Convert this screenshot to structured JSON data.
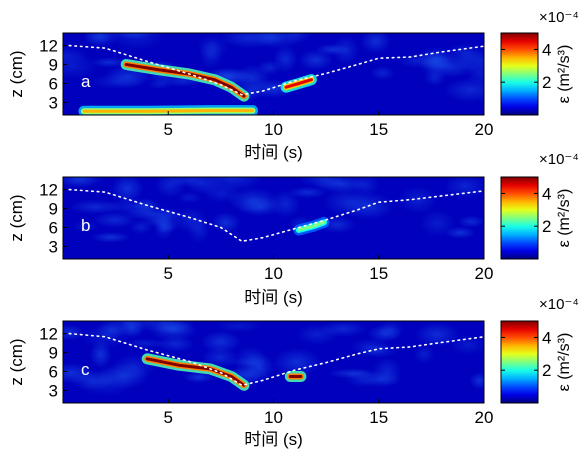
{
  "chart_data": [
    {
      "type": "heatmap",
      "panel_label": "a",
      "xlabel": "时间 (s)",
      "ylabel": "z (cm)",
      "xlim": [
        0,
        20
      ],
      "ylim": [
        1,
        14
      ],
      "x_ticks": [
        5,
        10,
        15,
        20
      ],
      "y_ticks": [
        3,
        6,
        9,
        12
      ],
      "colorbar": {
        "label": "ε (m²/s³)",
        "exponent_label": "×10⁻⁴",
        "ticks": [
          2,
          4
        ],
        "range": [
          0,
          5
        ]
      },
      "surface_dotted": [
        [
          0.3,
          12.0
        ],
        [
          2,
          11.6
        ],
        [
          4,
          9.5
        ],
        [
          6,
          7.5
        ],
        [
          7.5,
          5.8
        ],
        [
          8.5,
          4.2
        ],
        [
          9.5,
          4.8
        ],
        [
          11,
          6.4
        ],
        [
          12.5,
          7.6
        ],
        [
          14,
          9.0
        ],
        [
          15,
          10.0
        ],
        [
          16.5,
          10.2
        ],
        [
          18,
          11.0
        ],
        [
          20,
          11.9
        ]
      ],
      "high_dissipation_bands": [
        {
          "points": [
            [
              3,
              9.0
            ],
            [
              4.5,
              8.2
            ],
            [
              6,
              7.5
            ],
            [
              7.2,
              6.6
            ],
            [
              8,
              5.4
            ],
            [
              8.6,
              4.0
            ]
          ],
          "peak": 5
        },
        {
          "points": [
            [
              10.6,
              5.4
            ],
            [
              11.2,
              6.0
            ],
            [
              11.8,
              6.6
            ]
          ],
          "peak": 4.5
        },
        {
          "points": [
            [
              1,
              1.6
            ],
            [
              4,
              1.6
            ],
            [
              7,
              1.7
            ],
            [
              9,
              1.7
            ]
          ],
          "peak": 3.5
        }
      ]
    },
    {
      "type": "heatmap",
      "panel_label": "b",
      "xlabel": "时间 (s)",
      "ylabel": "z (cm)",
      "xlim": [
        0,
        20
      ],
      "ylim": [
        1,
        14
      ],
      "x_ticks": [
        5,
        10,
        15,
        20
      ],
      "y_ticks": [
        3,
        6,
        9,
        12
      ],
      "colorbar": {
        "label": "ε (m²/s³)",
        "exponent_label": "×10⁻⁴",
        "ticks": [
          2,
          4
        ],
        "range": [
          0,
          5
        ]
      },
      "surface_dotted": [
        [
          0.3,
          12.0
        ],
        [
          2,
          11.6
        ],
        [
          4,
          9.5
        ],
        [
          6,
          7.6
        ],
        [
          7.5,
          6.0
        ],
        [
          8.5,
          3.8
        ],
        [
          9.5,
          4.4
        ],
        [
          11,
          5.8
        ],
        [
          12.5,
          7.2
        ],
        [
          14,
          8.8
        ],
        [
          15,
          10.0
        ],
        [
          16.5,
          10.4
        ],
        [
          18,
          11.0
        ],
        [
          20,
          11.8
        ]
      ],
      "high_dissipation_bands": [
        {
          "points": [
            [
              11.2,
              5.6
            ],
            [
              11.9,
              6.2
            ],
            [
              12.4,
              6.8
            ]
          ],
          "peak": 2.5
        }
      ]
    },
    {
      "type": "heatmap",
      "panel_label": "c",
      "xlabel": "时间 (s)",
      "ylabel": "z (cm)",
      "xlim": [
        0,
        20
      ],
      "ylim": [
        1,
        14
      ],
      "x_ticks": [
        5,
        10,
        15,
        20
      ],
      "y_ticks": [
        3,
        6,
        9,
        12
      ],
      "colorbar": {
        "label": "ε (m²/s³)",
        "exponent_label": "×10⁻⁴",
        "ticks": [
          2,
          4
        ],
        "range": [
          0,
          5
        ]
      },
      "surface_dotted": [
        [
          0.3,
          12.0
        ],
        [
          2,
          11.5
        ],
        [
          4,
          9.4
        ],
        [
          6,
          7.6
        ],
        [
          7.5,
          5.8
        ],
        [
          8.5,
          3.8
        ],
        [
          9.5,
          4.6
        ],
        [
          11,
          6.2
        ],
        [
          12.5,
          7.4
        ],
        [
          14,
          8.8
        ],
        [
          15,
          9.6
        ],
        [
          16.5,
          9.9
        ],
        [
          18,
          10.6
        ],
        [
          20,
          11.5
        ]
      ],
      "high_dissipation_bands": [
        {
          "points": [
            [
              4,
              8.0
            ],
            [
              5.5,
              7.0
            ],
            [
              7,
              6.4
            ],
            [
              8,
              5.2
            ],
            [
              8.6,
              3.8
            ]
          ],
          "peak": 5
        },
        {
          "points": [
            [
              10.8,
              5.2
            ],
            [
              11.3,
              5.2
            ]
          ],
          "peak": 5
        }
      ]
    }
  ]
}
